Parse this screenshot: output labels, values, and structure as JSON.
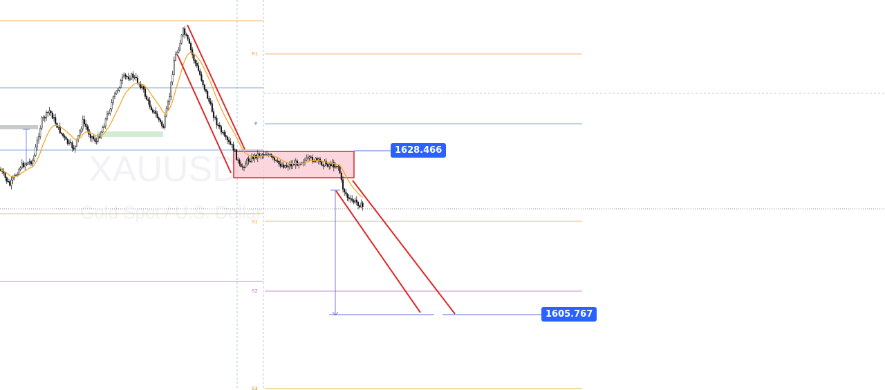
{
  "watermark": {
    "symbol": "XAUUSD",
    "description": "Gold Spot / U.S. Dollar"
  },
  "pivots": [
    {
      "label": "R1",
      "color": "#f5b36a"
    },
    {
      "label": "P",
      "color": "#7ba7d9"
    },
    {
      "label": "S1",
      "color": "#f5b36a"
    },
    {
      "label": "S2",
      "color": "#c58bd1"
    },
    {
      "label": "S3",
      "color": "#e0b84a"
    }
  ],
  "price_labels": {
    "consolidation": "1628.466",
    "target": "1605.767"
  },
  "colors": {
    "candle": "#111111",
    "ema": "#f5a623",
    "channel": "#e02424",
    "zone_fill": "#f9c9d2",
    "zone_border": "#e02424",
    "measure": "#5a6cd6",
    "badge": "#2962ff"
  },
  "chart_data": {
    "type": "candlestick",
    "symbol": "XAUUSD",
    "annotations": [
      "descending channel",
      "consolidation box",
      "descending channel",
      "price projection to 1605.767"
    ],
    "price_levels": {
      "consolidation_top": 1628.466,
      "target": 1605.767
    }
  }
}
